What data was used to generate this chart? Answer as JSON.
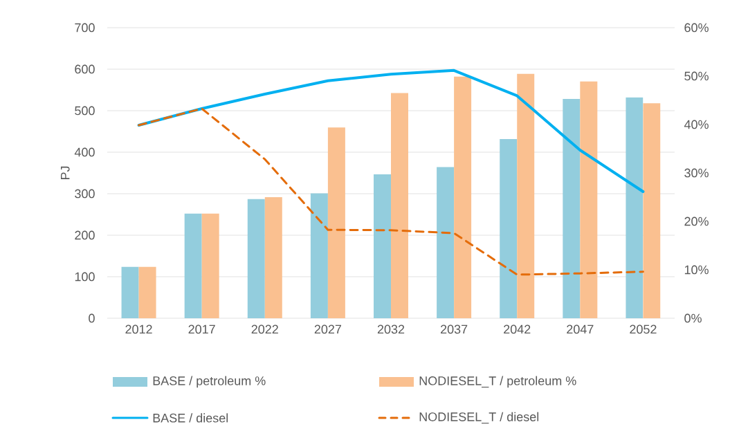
{
  "chart_data": {
    "type": "bar",
    "ylabel": "PJ",
    "categories": [
      "2012",
      "2017",
      "2022",
      "2027",
      "2032",
      "2037",
      "2042",
      "2047",
      "2052"
    ],
    "series": [
      {
        "name": "BASE / petroleum %",
        "axis": "y2",
        "color": "#93cddd",
        "values": [
          10.6,
          21.6,
          24.6,
          25.8,
          29.7,
          31.2,
          37.0,
          45.3,
          45.6
        ]
      },
      {
        "name": "NODIESEL_T / petroleum %",
        "axis": "y2",
        "color": "#fac090",
        "values": [
          10.6,
          21.6,
          25.0,
          39.4,
          46.5,
          49.9,
          50.5,
          48.9,
          44.4
        ]
      },
      {
        "name": "BASE / diesel",
        "type": "line",
        "axis": "y",
        "color": "#00b0f0",
        "line_style": "solid",
        "values": [
          465,
          505,
          540,
          572,
          588,
          597,
          536,
          405,
          305
        ]
      },
      {
        "name": "NODIESEL_T / diesel",
        "type": "line",
        "axis": "y",
        "color": "#e46c0a",
        "line_style": "dashed",
        "values": [
          465,
          505,
          383,
          213,
          212,
          205,
          105,
          108,
          112
        ]
      }
    ],
    "ylim": [
      0,
      700
    ],
    "yticks": [
      0,
      100,
      200,
      300,
      400,
      500,
      600,
      700
    ],
    "y2lim": [
      0,
      60
    ],
    "y2ticks": [
      {
        "value": 0,
        "label": "0%"
      },
      {
        "value": 10,
        "label": "10%"
      },
      {
        "value": 20,
        "label": "20%"
      },
      {
        "value": 30,
        "label": "30%"
      },
      {
        "value": 40,
        "label": "40%"
      },
      {
        "value": 50,
        "label": "50%"
      },
      {
        "value": 60,
        "label": "60%"
      }
    ],
    "grid": "y",
    "legend": "bottom"
  }
}
